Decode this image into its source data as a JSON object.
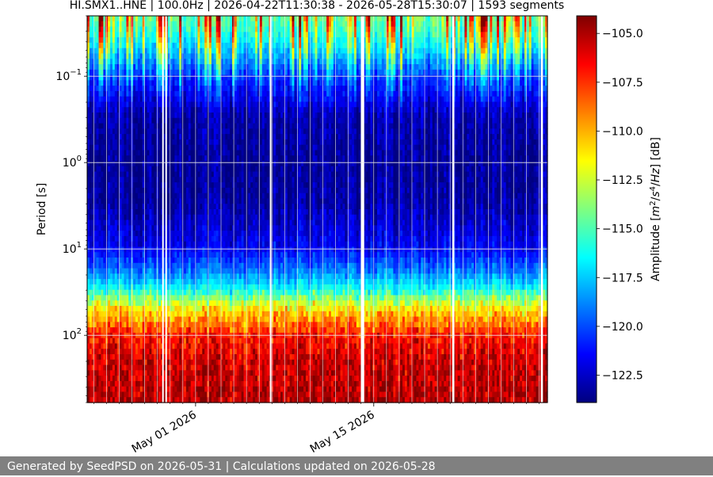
{
  "chart_data": {
    "type": "heatmap",
    "title": "HI.SMX1..HNE | 100.0Hz | 2026-04-22T11:30:38 - 2026-05-28T15:30:07 | 1593 segments",
    "ylabel": "Period [s]",
    "xlabel": "",
    "y_scale": "log",
    "y_inverted": true,
    "ylim": [
      0.02,
      600
    ],
    "y_ticks": [
      {
        "value": 0.1,
        "base": "10",
        "exp": "−1"
      },
      {
        "value": 1,
        "base": "10",
        "exp": "0"
      },
      {
        "value": 10,
        "base": "10",
        "exp": "1"
      },
      {
        "value": 100,
        "base": "10",
        "exp": "2"
      }
    ],
    "xlim": [
      "2026-04-22T11:30:38",
      "2026-05-28T15:30:07"
    ],
    "x_ticks": [
      {
        "value": "2026-05-01",
        "label": "May 01 2026"
      },
      {
        "value": "2026-05-15",
        "label": "May 15 2026"
      }
    ],
    "data_gaps": [
      [
        "2026-04-28T09:00:00",
        "2026-04-28T12:00:00"
      ],
      [
        "2026-04-28T15:00:00",
        "2026-04-28T18:00:00"
      ],
      [
        "2026-05-06T20:00:00",
        "2026-05-06T22:00:00"
      ],
      [
        "2026-05-14T00:00:00",
        "2026-05-14T06:00:00"
      ],
      [
        "2026-05-21T04:00:00",
        "2026-05-21T08:00:00"
      ],
      [
        "2026-05-28T03:00:00",
        "2026-05-28T07:00:00"
      ]
    ],
    "colorbar": {
      "label": "Amplitude [m²/s⁴/Hz] [dB]",
      "label_parts": {
        "pre": "Amplitude [",
        "m": "m",
        "m_sup": "2",
        "slash1": "/",
        "s": "s",
        "s_sup": "4",
        "slash2": "/",
        "hz": "Hz",
        "post": "] [dB]"
      },
      "colormap": "jet",
      "vmin": -123.9,
      "vmax": -104.1,
      "ticks": [
        -105.0,
        -107.5,
        -110.0,
        -112.5,
        -115.0,
        -117.5,
        -120.0,
        -122.5
      ],
      "tick_labels": [
        "−105.0",
        "−107.5",
        "−110.0",
        "−112.5",
        "−115.0",
        "−117.5",
        "−120.0",
        "−122.5"
      ]
    },
    "grid": true,
    "profile": [
      {
        "period": 0.02,
        "db": -114.5
      },
      {
        "period": 0.03,
        "db": -115.5
      },
      {
        "period": 0.05,
        "db": -117.5
      },
      {
        "period": 0.1,
        "db": -120.5
      },
      {
        "period": 0.3,
        "db": -123.0
      },
      {
        "period": 1,
        "db": -123.5
      },
      {
        "period": 3,
        "db": -123.2
      },
      {
        "period": 10,
        "db": -121.5
      },
      {
        "period": 20,
        "db": -118.5
      },
      {
        "period": 30,
        "db": -116.0
      },
      {
        "period": 50,
        "db": -111.0
      },
      {
        "period": 100,
        "db": -107.0
      },
      {
        "period": 200,
        "db": -105.5
      },
      {
        "period": 600,
        "db": -105.0
      }
    ]
  },
  "footer": {
    "text": "Generated by SeedPSD on 2026-05-31 | Calculations updated on 2026-05-28"
  }
}
